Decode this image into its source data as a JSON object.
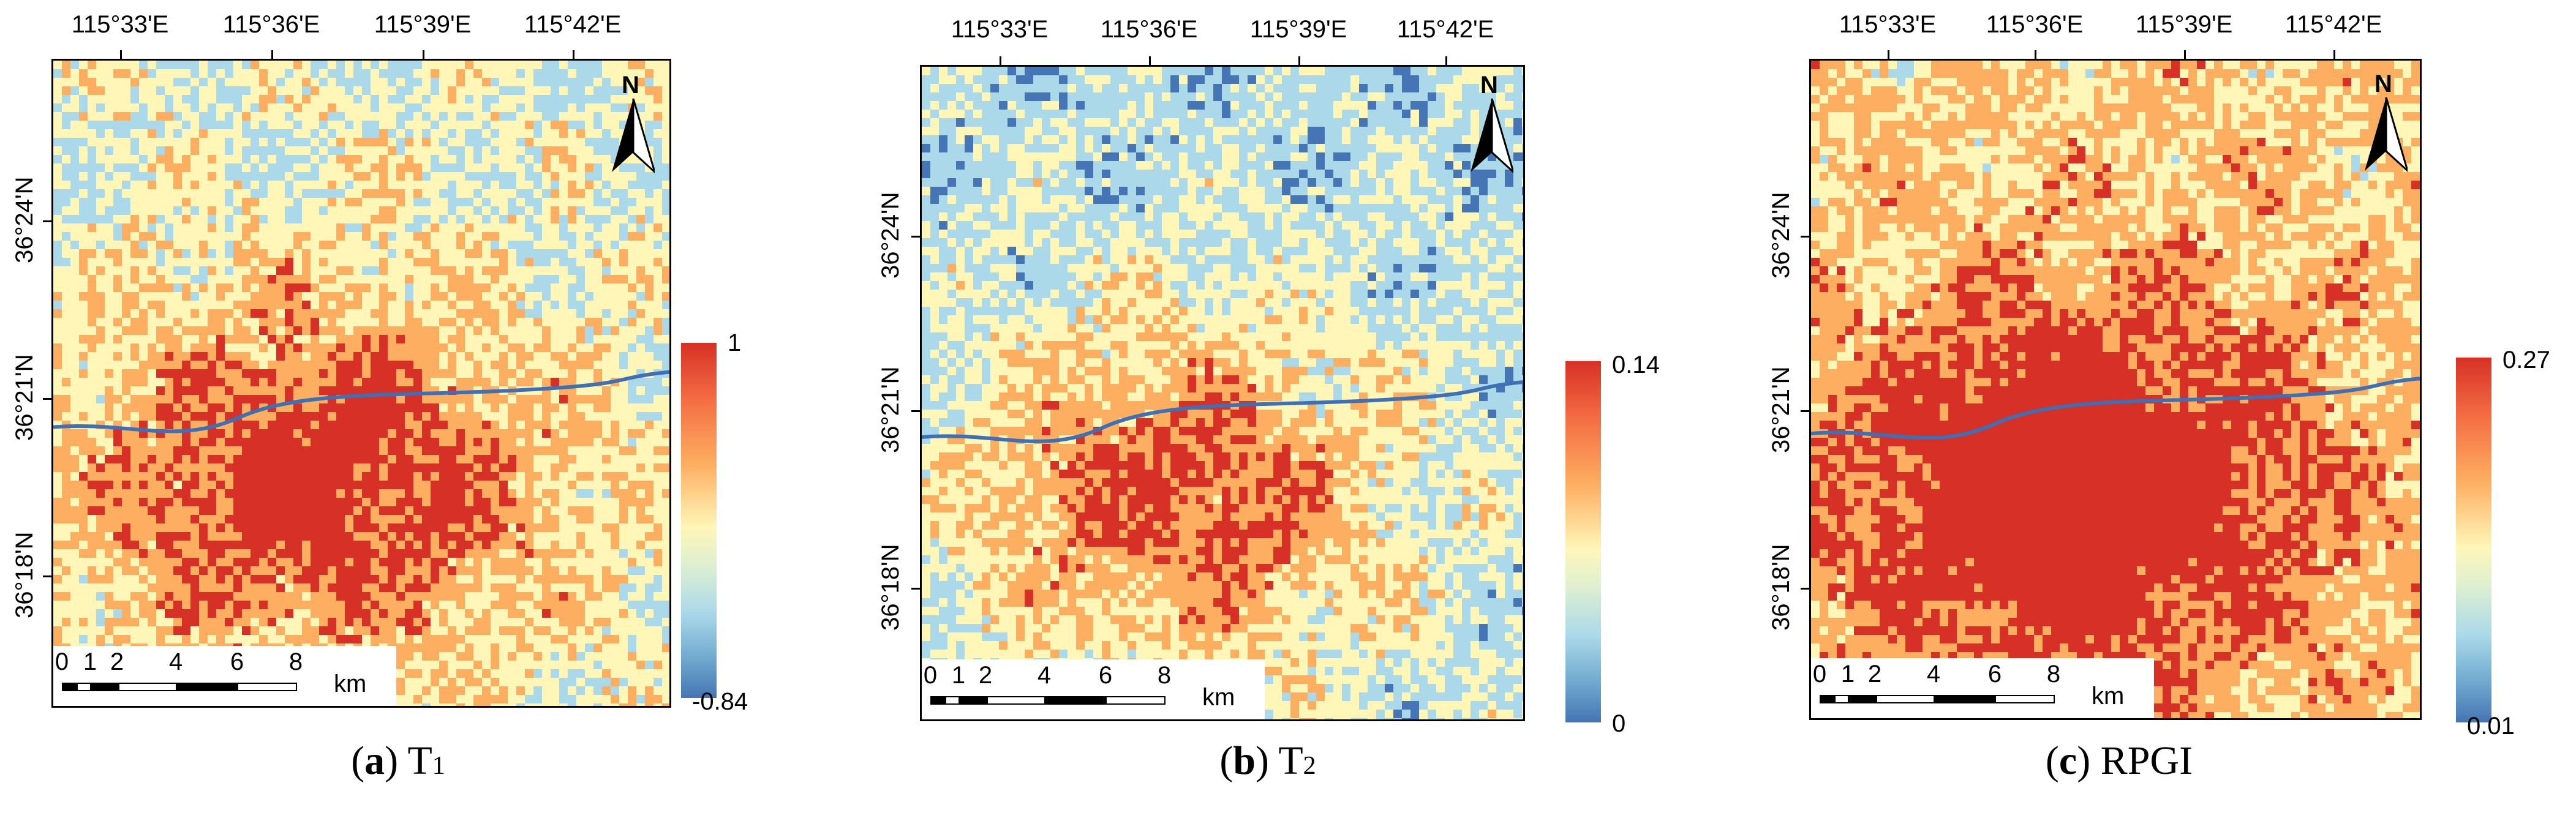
{
  "figure": {
    "panels": [
      {
        "id": "a",
        "caption_letter": "a",
        "caption_base": "T",
        "caption_sub": "1",
        "legend_max": "1",
        "legend_min": "-0.84",
        "dominance": "mixed"
      },
      {
        "id": "b",
        "caption_letter": "b",
        "caption_base": "T",
        "caption_sub": "2",
        "legend_max": "0.14",
        "legend_min": "0",
        "dominance": "blue"
      },
      {
        "id": "c",
        "caption_letter": "c",
        "caption_base": "RPGI",
        "caption_sub": "",
        "legend_max": "0.27",
        "legend_min": "0.01",
        "dominance": "red"
      }
    ],
    "longitude_labels": [
      "115°33'E",
      "115°36'E",
      "115°39'E",
      "115°42'E"
    ],
    "latitude_labels": [
      "36°24'N",
      "36°21'N",
      "36°18'N"
    ],
    "scale_bar": {
      "ticks": [
        "0",
        "1",
        "2",
        "4",
        "6",
        "8"
      ],
      "unit": "km"
    },
    "north_arrow_label": "N",
    "colors": {
      "high": "#d73027",
      "mid_high": "#fdae61",
      "mid": "#fff6b8",
      "mid_low": "#abd9e9",
      "low": "#4575b4",
      "river": "#3f6fb5"
    }
  }
}
